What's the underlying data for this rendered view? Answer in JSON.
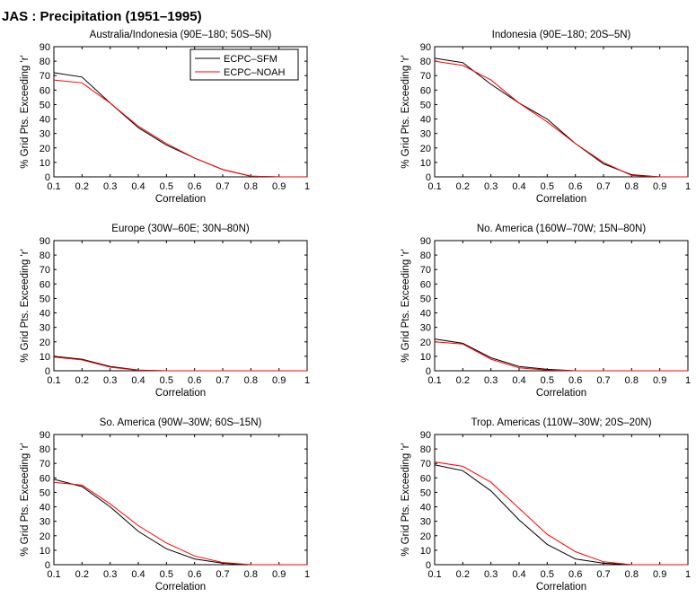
{
  "figure_title": "JAS : Precipitation (1951–1995)",
  "colors": {
    "sfm": "#000000",
    "noah": "#ff0000",
    "axis": "#000000",
    "background": "#ffffff"
  },
  "chart_data": [
    {
      "type": "line",
      "title": "Australia/Indonesia (90E–180; 50S–5N)",
      "xlabel": "Correlation",
      "ylabel": "% Grid Pts. Exceeding 'r'",
      "xlim": [
        0.1,
        1
      ],
      "ylim": [
        0,
        90
      ],
      "xticks": [
        "0.1",
        "0.2",
        "0.3",
        "0.4",
        "0.5",
        "0.6",
        "0.7",
        "0.8",
        "0.9",
        "1"
      ],
      "yticks": [
        "0",
        "10",
        "20",
        "30",
        "40",
        "50",
        "60",
        "70",
        "80",
        "90"
      ],
      "grid": false,
      "legend": {
        "placement": "top-right",
        "entries": [
          "ECPC–SFM",
          "ECPC–NOAH"
        ]
      },
      "x": [
        0.1,
        0.2,
        0.3,
        0.4,
        0.5,
        0.6,
        0.7,
        0.8,
        0.9,
        1.0
      ],
      "series": [
        {
          "name": "ECPC–SFM",
          "color": "#000000",
          "values": [
            72,
            69,
            51,
            34,
            22,
            13,
            5,
            0.5,
            0,
            0
          ]
        },
        {
          "name": "ECPC–NOAH",
          "color": "#ff0000",
          "values": [
            67,
            65,
            51,
            35,
            23,
            13,
            5,
            0.5,
            0,
            0
          ]
        }
      ]
    },
    {
      "type": "line",
      "title": "Indonesia (90E–180; 20S–5N)",
      "xlabel": "Correlation",
      "ylabel": "% Grid Pts. Exceeding 'r'",
      "xlim": [
        0.1,
        1
      ],
      "ylim": [
        0,
        90
      ],
      "xticks": [
        "0.1",
        "0.2",
        "0.3",
        "0.4",
        "0.5",
        "0.6",
        "0.7",
        "0.8",
        "0.9",
        "1"
      ],
      "yticks": [
        "0",
        "10",
        "20",
        "30",
        "40",
        "50",
        "60",
        "70",
        "80",
        "90"
      ],
      "grid": false,
      "x": [
        0.1,
        0.2,
        0.3,
        0.4,
        0.5,
        0.6,
        0.7,
        0.8,
        0.9,
        1.0
      ],
      "series": [
        {
          "name": "ECPC–SFM",
          "color": "#000000",
          "values": [
            82,
            79,
            64,
            51,
            40,
            23,
            9,
            1.5,
            0,
            0
          ]
        },
        {
          "name": "ECPC–NOAH",
          "color": "#ff0000",
          "values": [
            80,
            77,
            67,
            51,
            38,
            23,
            10,
            1,
            0,
            0
          ]
        }
      ]
    },
    {
      "type": "line",
      "title": "Europe (30W–60E; 30N–80N)",
      "xlabel": "Correlation",
      "ylabel": "% Grid Pts. Exceeding 'r'",
      "xlim": [
        0.1,
        1
      ],
      "ylim": [
        0,
        90
      ],
      "xticks": [
        "0.1",
        "0.2",
        "0.3",
        "0.4",
        "0.5",
        "0.6",
        "0.7",
        "0.8",
        "0.9",
        "1"
      ],
      "yticks": [
        "0",
        "10",
        "20",
        "30",
        "40",
        "50",
        "60",
        "70",
        "80",
        "90"
      ],
      "grid": false,
      "x": [
        0.1,
        0.2,
        0.3,
        0.4,
        0.5,
        0.6,
        0.7,
        0.8,
        0.9,
        1.0
      ],
      "series": [
        {
          "name": "ECPC–SFM",
          "color": "#000000",
          "values": [
            10,
            8,
            3,
            0.5,
            0,
            0,
            0,
            0,
            0,
            0
          ]
        },
        {
          "name": "ECPC–NOAH",
          "color": "#ff0000",
          "values": [
            9.5,
            7.5,
            2.5,
            0.3,
            0,
            0,
            0,
            0,
            0,
            0
          ]
        }
      ]
    },
    {
      "type": "line",
      "title": "No. America (160W–70W; 15N–80N)",
      "xlabel": "Correlation",
      "ylabel": "% Grid Pts. Exceeding 'r'",
      "xlim": [
        0.1,
        1
      ],
      "ylim": [
        0,
        90
      ],
      "xticks": [
        "0.1",
        "0.2",
        "0.3",
        "0.4",
        "0.5",
        "0.6",
        "0.7",
        "0.8",
        "0.9",
        "1"
      ],
      "yticks": [
        "0",
        "10",
        "20",
        "30",
        "40",
        "50",
        "60",
        "70",
        "80",
        "90"
      ],
      "grid": false,
      "x": [
        0.1,
        0.2,
        0.3,
        0.4,
        0.5,
        0.6,
        0.7,
        0.8,
        0.9,
        1.0
      ],
      "series": [
        {
          "name": "ECPC–SFM",
          "color": "#000000",
          "values": [
            22,
            19,
            9,
            3,
            1,
            0,
            0,
            0,
            0,
            0
          ]
        },
        {
          "name": "ECPC–NOAH",
          "color": "#ff0000",
          "values": [
            20,
            18.5,
            8,
            2,
            0.5,
            0,
            0,
            0,
            0,
            0
          ]
        }
      ]
    },
    {
      "type": "line",
      "title": "So. America (90W–30W; 60S–15N)",
      "xlabel": "Correlation",
      "ylabel": "% Grid Pts. Exceeding 'r'",
      "xlim": [
        0.1,
        1
      ],
      "ylim": [
        0,
        90
      ],
      "xticks": [
        "0.1",
        "0.2",
        "0.3",
        "0.4",
        "0.5",
        "0.6",
        "0.7",
        "0.8",
        "0.9",
        "1"
      ],
      "yticks": [
        "0",
        "10",
        "20",
        "30",
        "40",
        "50",
        "60",
        "70",
        "80",
        "90"
      ],
      "grid": false,
      "x": [
        0.1,
        0.2,
        0.3,
        0.4,
        0.5,
        0.6,
        0.7,
        0.8,
        0.9,
        1.0
      ],
      "series": [
        {
          "name": "ECPC–SFM",
          "color": "#000000",
          "values": [
            59,
            54,
            40,
            23,
            11,
            4,
            1,
            0,
            0,
            0
          ]
        },
        {
          "name": "ECPC–NOAH",
          "color": "#ff0000",
          "values": [
            57,
            55,
            42,
            27,
            15,
            6,
            1.5,
            0,
            0,
            0
          ]
        }
      ]
    },
    {
      "type": "line",
      "title": "Trop. Americas (110W–30W; 20S–20N)",
      "xlabel": "Correlation",
      "ylabel": "% Grid Pts. Exceeding 'r'",
      "xlim": [
        0.1,
        1
      ],
      "ylim": [
        0,
        90
      ],
      "xticks": [
        "0.1",
        "0.2",
        "0.3",
        "0.4",
        "0.5",
        "0.6",
        "0.7",
        "0.8",
        "0.9",
        "1"
      ],
      "yticks": [
        "0",
        "10",
        "20",
        "30",
        "40",
        "50",
        "60",
        "70",
        "80",
        "90"
      ],
      "grid": false,
      "x": [
        0.1,
        0.2,
        0.3,
        0.4,
        0.5,
        0.6,
        0.7,
        0.8,
        0.9,
        1.0
      ],
      "series": [
        {
          "name": "ECPC–SFM",
          "color": "#000000",
          "values": [
            69,
            65,
            51,
            31,
            14,
            4,
            1,
            0,
            0,
            0
          ]
        },
        {
          "name": "ECPC–NOAH",
          "color": "#ff0000",
          "values": [
            71,
            68,
            57,
            39,
            21,
            9,
            2,
            0,
            0,
            0
          ]
        }
      ]
    }
  ]
}
